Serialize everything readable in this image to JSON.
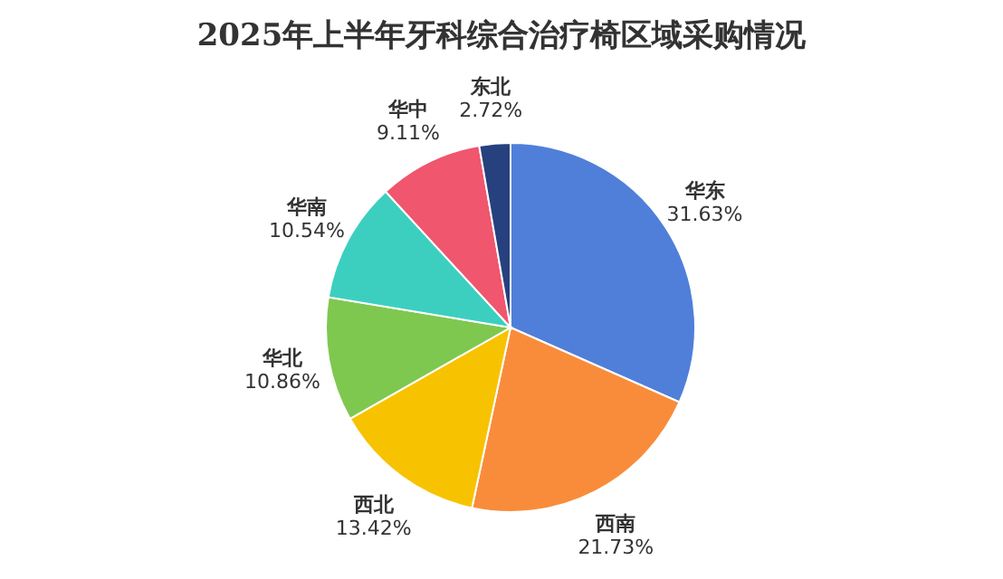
{
  "chart_data": {
    "type": "pie",
    "title": "2025年上半年牙科综合治疗椅区域采购情况",
    "categories": [
      "华东",
      "西南",
      "西北",
      "华北",
      "华南",
      "华中",
      "东北"
    ],
    "values": [
      31.63,
      21.73,
      13.42,
      10.86,
      10.54,
      9.11,
      2.72
    ],
    "value_labels": [
      "31.63%",
      "21.73%",
      "13.42%",
      "10.86%",
      "10.54%",
      "9.11%",
      "2.72%"
    ],
    "colors": [
      "#4f7fd9",
      "#f98c3a",
      "#f7c300",
      "#7ec850",
      "#3ccfc0",
      "#f0566e",
      "#27407e"
    ]
  }
}
